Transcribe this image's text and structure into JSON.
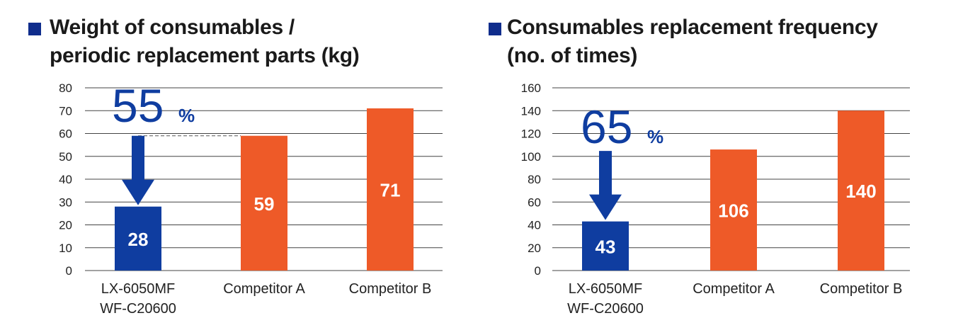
{
  "chart_data": [
    {
      "type": "bar",
      "title_lines": [
        "Weight of consumables /",
        "periodic replacement parts (kg)"
      ],
      "categories": [
        [
          "LX-6050MF",
          "WF-C20600"
        ],
        [
          "Competitor A"
        ],
        [
          "Competitor B"
        ]
      ],
      "values": [
        28,
        59,
        71
      ],
      "value_labels": [
        "28",
        "59",
        "71"
      ],
      "ylim": [
        0,
        80
      ],
      "yticks": [
        0,
        10,
        20,
        30,
        40,
        50,
        60,
        70,
        80
      ],
      "grid": true,
      "bar_colors": [
        "#0f3da0",
        "#ee5a28",
        "#ee5a28"
      ],
      "reduction_number": "55",
      "reduction_symbol": "%"
    },
    {
      "type": "bar",
      "title_lines": [
        "Consumables replacement frequency",
        "(no. of times)"
      ],
      "categories": [
        [
          "LX-6050MF",
          "WF-C20600"
        ],
        [
          "Competitor A"
        ],
        [
          "Competitor B"
        ]
      ],
      "values": [
        43,
        106,
        140
      ],
      "value_labels": [
        "43",
        "106",
        "140"
      ],
      "ylim": [
        0,
        160
      ],
      "yticks": [
        0,
        20,
        40,
        60,
        80,
        100,
        120,
        140,
        160
      ],
      "grid": true,
      "bar_colors": [
        "#0f3da0",
        "#ee5a28",
        "#ee5a28"
      ],
      "reduction_number": "65",
      "reduction_symbol": "%"
    }
  ],
  "colors": {
    "title_marker": "#0f2d8c",
    "arrow": "#0f3da0",
    "grid": "#444444"
  }
}
